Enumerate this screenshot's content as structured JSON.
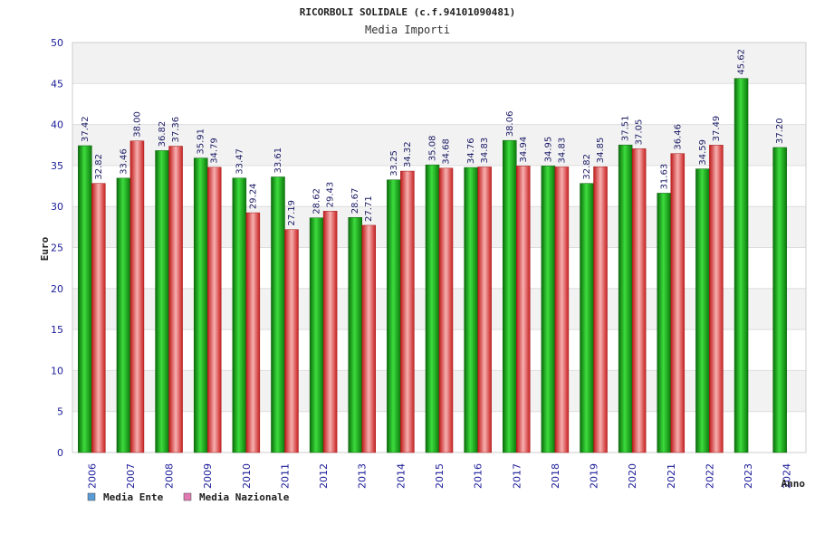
{
  "chart_data": {
    "type": "bar",
    "title": "RICORBOLI SOLIDALE (c.f.94101090481)",
    "subtitle": "Media Importi",
    "ylabel": "Euro",
    "xlabel": "Anno",
    "ylim": [
      0,
      50
    ],
    "yticks": [
      0,
      5,
      10,
      15,
      20,
      25,
      30,
      35,
      40,
      45,
      50
    ],
    "grid": true,
    "legend_position": "bottom-left",
    "categories": [
      "2006",
      "2007",
      "2008",
      "2009",
      "2010",
      "2011",
      "2012",
      "2013",
      "2014",
      "2015",
      "2016",
      "2017",
      "2018",
      "2019",
      "2020",
      "2021",
      "2022",
      "2023",
      "2024"
    ],
    "series": [
      {
        "name": "Media Ente",
        "legend_color": "#5b9bd5",
        "bar_color": "#22bb22",
        "values": [
          37.42,
          33.46,
          36.82,
          35.91,
          33.47,
          33.61,
          28.62,
          28.67,
          33.25,
          35.08,
          34.76,
          38.06,
          34.95,
          32.82,
          37.51,
          31.63,
          34.59,
          45.62,
          37.2
        ],
        "labels": [
          "37.42",
          "33.46",
          "36.82",
          "35.91",
          "33.47",
          "33.61",
          "28.62",
          "28.67",
          "33.25",
          "35.08",
          "34.76",
          "38.06",
          "34.95",
          "32.82",
          "37.51",
          "31.63",
          "34.59",
          "45.62",
          "37.20"
        ]
      },
      {
        "name": "Media Nazionale",
        "legend_color": "#e07ab0",
        "bar_color": "#e84848",
        "values": [
          32.82,
          38.0,
          37.36,
          34.79,
          29.24,
          27.19,
          29.43,
          27.71,
          34.32,
          34.68,
          34.83,
          34.94,
          34.83,
          34.85,
          37.05,
          36.46,
          37.49,
          null,
          null
        ],
        "labels": [
          "32.82",
          "38.00",
          "37.36",
          "34.79",
          "29.24",
          "27.19",
          "29.43",
          "27.71",
          "34.32",
          "34.68",
          "34.83",
          "34.94",
          "34.83",
          "34.85",
          "37.05",
          "36.46",
          "37.49",
          "",
          ""
        ]
      }
    ]
  }
}
